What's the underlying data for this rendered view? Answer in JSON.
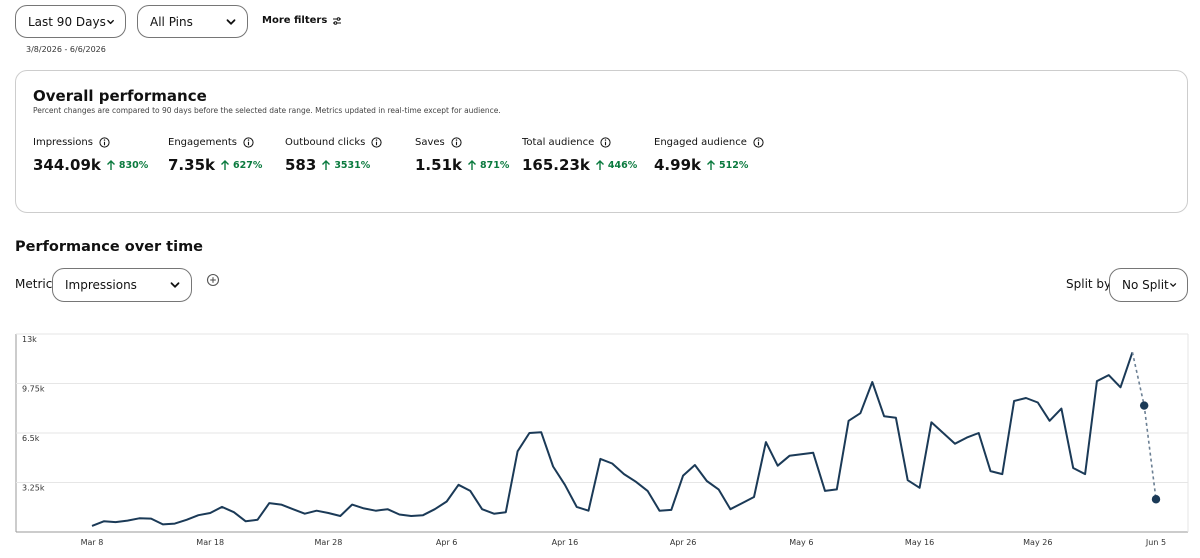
{
  "filters": {
    "date_range_select": "Last 90 Days",
    "pins_select": "All Pins",
    "more_filters": "More filters",
    "date_range_text": "3/8/2026 - 6/6/2026"
  },
  "overall": {
    "title": "Overall performance",
    "subtitle": "Percent changes are compared to 90 days before the selected date range. Metrics updated in real-time except for audience.",
    "metrics": [
      {
        "label": "Impressions",
        "value": "344.09k",
        "change": "830%"
      },
      {
        "label": "Engagements",
        "value": "7.35k",
        "change": "627%"
      },
      {
        "label": "Outbound clicks",
        "value": "583",
        "change": "3531%"
      },
      {
        "label": "Saves",
        "value": "1.51k",
        "change": "871%"
      },
      {
        "label": "Total audience",
        "value": "165.23k",
        "change": "446%"
      },
      {
        "label": "Engaged audience",
        "value": "4.99k",
        "change": "512%"
      }
    ]
  },
  "performance": {
    "title": "Performance over time",
    "metric_label": "Metric",
    "metric_select": "Impressions",
    "split_label": "Split by",
    "split_select": "No Split"
  },
  "colors": {
    "line": "#1b3a57",
    "positive": "#0a7a3e",
    "grid": "#e6e6e6"
  },
  "chart_data": {
    "type": "line",
    "ylim": [
      0,
      13000
    ],
    "y_ticks": [
      "3.25k",
      "6.5k",
      "9.75k",
      "13k"
    ],
    "x_tick_labels": [
      "Mar 8",
      "Mar 18",
      "Mar 28",
      "Apr 6",
      "Apr 16",
      "Apr 26",
      "May 6",
      "May 16",
      "May 26",
      "Jun 5"
    ],
    "grid": true,
    "series": [
      {
        "values": [
          400,
          700,
          650,
          750,
          900,
          880,
          500,
          550,
          800,
          1100,
          1250,
          1650,
          1300,
          700,
          800,
          1900,
          1800,
          1500,
          1200,
          1400,
          1250,
          1050,
          1800,
          1550,
          1400,
          1500,
          1150,
          1050,
          1100,
          1500,
          2000,
          3100,
          2700,
          1500,
          1200,
          1300,
          5300,
          6500,
          6550,
          4300,
          3100,
          1650,
          1400,
          4800,
          4500,
          3800,
          3300,
          2700,
          1400,
          1450,
          3700,
          4400,
          3350,
          2800,
          1500,
          1900,
          2300,
          5900,
          4350,
          5000,
          5100,
          5200,
          2700,
          2800,
          7300,
          7800,
          9850,
          7600,
          7500,
          3400,
          2900,
          7200,
          6500,
          5800,
          6200,
          6500,
          4000,
          3800,
          8600,
          8800,
          8500,
          7300,
          8100,
          4200,
          3800,
          9900,
          10300,
          9500,
          11800
        ]
      },
      {
        "values": [
          11800,
          8300,
          2150
        ],
        "projected": true
      }
    ]
  }
}
